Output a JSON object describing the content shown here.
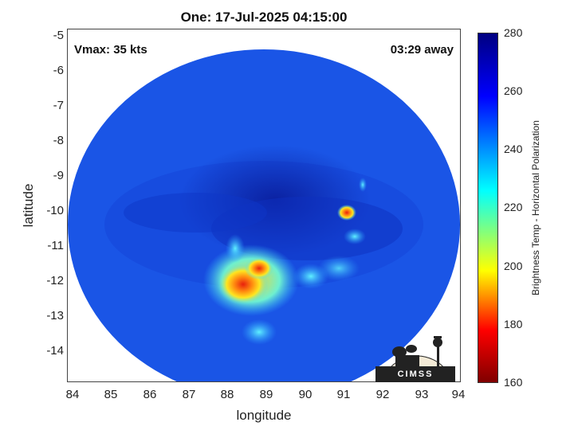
{
  "title": "One: 17-Jul-2025 04:15:00",
  "annotations": {
    "vmax": "Vmax: 35 kts",
    "away": "03:29 away"
  },
  "axes": {
    "xlabel": "longitude",
    "ylabel": "latitude",
    "xticks": [
      "84",
      "85",
      "86",
      "87",
      "88",
      "89",
      "90",
      "91",
      "92",
      "93",
      "94"
    ],
    "yticks": [
      "-5",
      "-6",
      "-7",
      "-8",
      "-9",
      "-10",
      "-11",
      "-12",
      "-13",
      "-14"
    ]
  },
  "colorbar": {
    "label": "Brightness Temp - Horizontal Polarization",
    "ticks": [
      "280",
      "260",
      "240",
      "220",
      "200",
      "180",
      "160"
    ],
    "range": [
      160,
      280
    ]
  },
  "logo": {
    "text": "CIMSS"
  },
  "colors": {
    "swath_base": "#1a55e6",
    "deep_blue": "#0b2ab8",
    "convection": "#ffd21f",
    "core": "#e83a12"
  }
}
